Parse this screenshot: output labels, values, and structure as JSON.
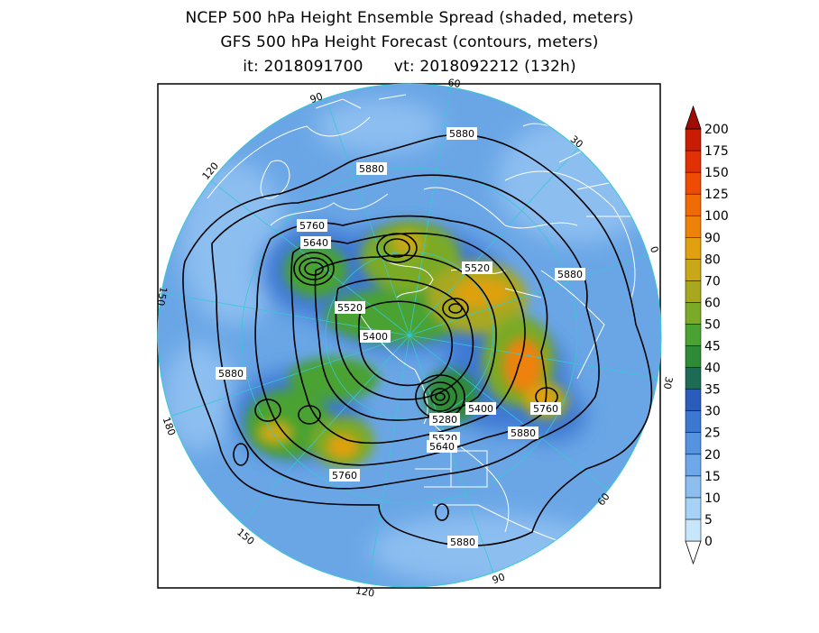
{
  "header": {
    "line1": "NCEP 500 hPa Height Ensemble Spread (shaded, meters)",
    "line2": "GFS 500 hPa Height Forecast (contours, meters)",
    "init_label": "it: 2018091700",
    "valid_label": "vt: 2018092212 (132h)"
  },
  "projection": "polar-stereographic-north",
  "longitude_labels": [
    "60",
    "30",
    "0",
    "30",
    "60",
    "90",
    "120",
    "150",
    "180",
    "150",
    "120",
    "90"
  ],
  "contour_labels": [
    "5880",
    "5880",
    "5760",
    "5640",
    "5520",
    "5520",
    "5400",
    "5880",
    "5880",
    "5280",
    "5400",
    "5760",
    "5520",
    "5640",
    "5880",
    "5760",
    "5880"
  ],
  "colorbar": {
    "levels": [
      "0",
      "5",
      "10",
      "15",
      "20",
      "25",
      "30",
      "35",
      "40",
      "45",
      "50",
      "60",
      "70",
      "80",
      "90",
      "100",
      "125",
      "150",
      "175",
      "200"
    ],
    "colors": [
      "#c8e6fa",
      "#a6d2f5",
      "#8cbef0",
      "#6ea8ea",
      "#5592e0",
      "#3c78d2",
      "#2b5cbc",
      "#1e6b55",
      "#2e8a36",
      "#4aa232",
      "#7aaa28",
      "#a8a820",
      "#c8a818",
      "#e0a010",
      "#ee8208",
      "#f06a06",
      "#ee4c04",
      "#e03004",
      "#c81c04",
      "#a00c02"
    ]
  }
}
